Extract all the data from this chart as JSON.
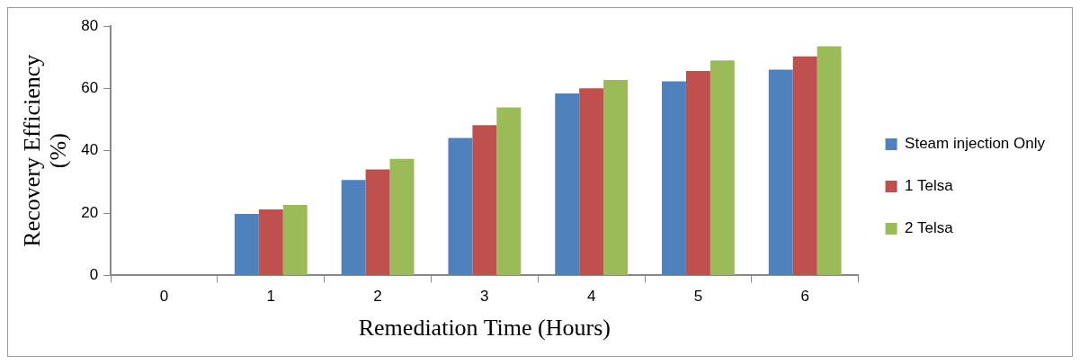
{
  "chart_data": {
    "type": "bar",
    "xlabel": "Remediation Time (Hours)",
    "ylabel": "Recovery Efficiency (%)",
    "categories": [
      "0",
      "1",
      "2",
      "3",
      "4",
      "5",
      "6"
    ],
    "series": [
      {
        "name": "Steam injection Only",
        "color": "#4f81bd",
        "values": [
          0,
          19.7,
          30.6,
          44.1,
          58.4,
          62.3,
          66
        ]
      },
      {
        "name": "1 Telsa",
        "color": "#c0504d",
        "values": [
          0,
          21.2,
          34,
          48.2,
          60,
          65.6,
          70.3
        ]
      },
      {
        "name": "2 Telsa",
        "color": "#9bbb59",
        "values": [
          0,
          22.6,
          37.4,
          53.9,
          62.7,
          69,
          73.5
        ]
      }
    ],
    "ylim": [
      0,
      80
    ],
    "yticks": [
      0,
      20,
      40,
      60,
      80
    ],
    "grid": false,
    "legend": "right"
  }
}
